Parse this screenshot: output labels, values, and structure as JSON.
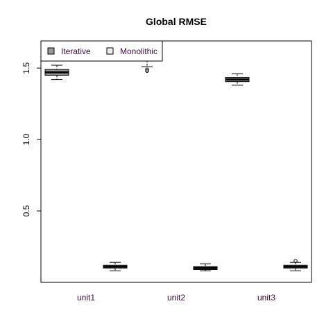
{
  "chart_data": {
    "type": "boxplot",
    "title": "Global RMSE",
    "xlabel": "",
    "ylabel": "",
    "categories": [
      "unit1",
      "unit2",
      "unit3"
    ],
    "ylim": [
      0.0,
      1.69
    ],
    "yticks": [
      0.5,
      1.0,
      1.5
    ],
    "ytick_labels": [
      "0.5",
      "1.0",
      "1.5"
    ],
    "legend": {
      "position": "top-left"
    },
    "series": [
      {
        "name": "Iterative",
        "color": "#999999",
        "boxes": [
          {
            "category": "unit1",
            "min": 1.42,
            "q1": 1.45,
            "median": 1.47,
            "q3": 1.49,
            "max": 1.52,
            "outliers": []
          },
          {
            "category": "unit2",
            "min": 1.51,
            "q1": 1.555,
            "median": 1.575,
            "q3": 1.595,
            "max": 1.63,
            "outliers": [
              1.49,
              1.48
            ]
          },
          {
            "category": "unit3",
            "min": 1.38,
            "q1": 1.405,
            "median": 1.42,
            "q3": 1.435,
            "max": 1.46,
            "outliers": []
          }
        ]
      },
      {
        "name": "Monolithic",
        "color": "#eeeeee",
        "boxes": [
          {
            "category": "unit1",
            "min": 0.08,
            "q1": 0.1,
            "median": 0.11,
            "q3": 0.12,
            "max": 0.14,
            "outliers": []
          },
          {
            "category": "unit2",
            "min": 0.08,
            "q1": 0.09,
            "median": 0.1,
            "q3": 0.11,
            "max": 0.13,
            "outliers": []
          },
          {
            "category": "unit3",
            "min": 0.08,
            "q1": 0.1,
            "median": 0.11,
            "q3": 0.12,
            "max": 0.14,
            "outliers": [
              0.15
            ]
          }
        ]
      }
    ]
  }
}
